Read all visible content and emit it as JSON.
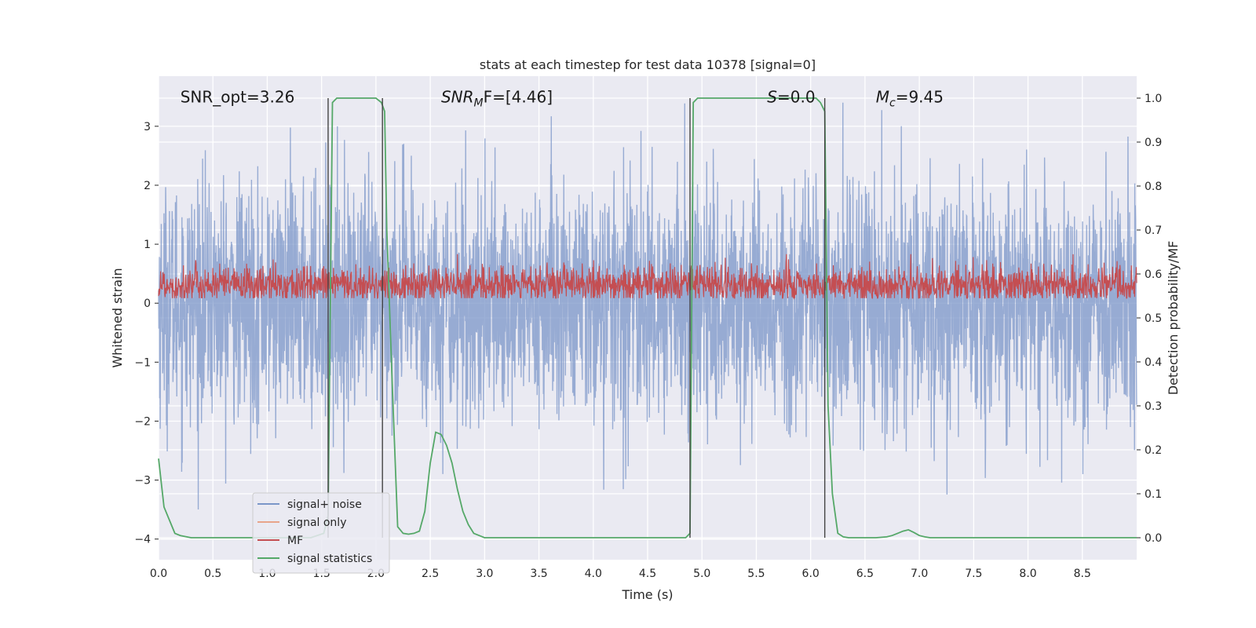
{
  "chart_data": {
    "type": "line",
    "title": "stats at each timestep for test data 10378 [signal=0]",
    "xlabel": "Time (s)",
    "ylabel": "Whitened strain",
    "y2label": "Detection probability/MF",
    "xlim": [
      0.0,
      9.0
    ],
    "ylim": [
      -4.35,
      3.85
    ],
    "y2lim": [
      -0.05,
      1.05
    ],
    "xticks": [
      0.0,
      0.5,
      1.0,
      1.5,
      2.0,
      2.5,
      3.0,
      3.5,
      4.0,
      4.5,
      5.0,
      5.5,
      6.0,
      6.5,
      7.0,
      7.5,
      8.0,
      8.5
    ],
    "xtick_labels": [
      "0.0",
      "0.5",
      "1.0",
      "1.5",
      "2.0",
      "2.5",
      "3.0",
      "3.5",
      "4.0",
      "4.5",
      "5.0",
      "5.5",
      "6.0",
      "6.5",
      "7.0",
      "7.5",
      "8.0",
      "8.5"
    ],
    "yticks": [
      -4,
      -3,
      -2,
      -1,
      0,
      1,
      2,
      3
    ],
    "ytick_labels": [
      "−4",
      "−3",
      "−2",
      "−1",
      "0",
      "1",
      "2",
      "3"
    ],
    "y2ticks": [
      0.0,
      0.1,
      0.2,
      0.3,
      0.4,
      0.5,
      0.6,
      0.7,
      0.8,
      0.9,
      1.0
    ],
    "y2tick_labels": [
      "0.0",
      "0.1",
      "0.2",
      "0.3",
      "0.4",
      "0.5",
      "0.6",
      "0.7",
      "0.8",
      "0.9",
      "1.0"
    ],
    "grid": true,
    "legend_position": "lower-left",
    "annotations": [
      {
        "text": "SNR_opt=3.26",
        "x": 0.2,
        "y": 3.5
      },
      {
        "text": "SNRMF=[4.46]",
        "main": "SNR",
        "sub": "M",
        "tail": "F=[4.46]",
        "x": 2.6,
        "y": 3.5
      },
      {
        "text": "S=0.0",
        "main": "S",
        "tail": "=0.0",
        "x": 5.6,
        "y": 3.5
      },
      {
        "text": "Mc=9.45",
        "main": "M",
        "sub": "c",
        "tail": "=9.45",
        "x": 6.6,
        "y": 3.5
      }
    ],
    "vertical_lines_x": [
      1.56,
      2.06,
      4.89,
      6.13
    ],
    "series": [
      {
        "name": "signal+ noise",
        "axis": "left",
        "color": "#7b96c8",
        "kind": "noise",
        "center": 0.0,
        "spread": 1.0,
        "peak_max": 3.4,
        "peak_min": -4.0
      },
      {
        "name": "signal only",
        "axis": "left",
        "color": "#e8a58a",
        "kind": "flat",
        "value": 0.0
      },
      {
        "name": "MF",
        "axis": "right",
        "color": "#c44e52",
        "kind": "noise",
        "center": 0.575,
        "spread": 0.022,
        "peak_max": 0.645,
        "peak_min": 0.545
      },
      {
        "name": "signal statistics",
        "axis": "right",
        "color": "#55a868",
        "kind": "line",
        "x": [
          0.0,
          0.05,
          0.1,
          0.15,
          0.2,
          0.3,
          0.5,
          1.0,
          1.4,
          1.52,
          1.56,
          1.6,
          1.64,
          1.7,
          1.8,
          2.0,
          2.05,
          2.08,
          2.1,
          2.15,
          2.2,
          2.25,
          2.3,
          2.35,
          2.4,
          2.45,
          2.5,
          2.55,
          2.6,
          2.65,
          2.7,
          2.75,
          2.8,
          2.85,
          2.9,
          2.95,
          3.0,
          3.1,
          3.5,
          4.0,
          4.5,
          4.85,
          4.89,
          4.92,
          4.96,
          5.0,
          5.5,
          6.0,
          6.05,
          6.09,
          6.13,
          6.16,
          6.2,
          6.25,
          6.3,
          6.35,
          6.4,
          6.6,
          6.7,
          6.75,
          6.8,
          6.85,
          6.9,
          6.95,
          7.0,
          7.05,
          7.1,
          7.5,
          8.0,
          8.5,
          9.0
        ],
        "y": [
          0.18,
          0.07,
          0.04,
          0.01,
          0.005,
          0.0,
          0.0,
          0.0,
          0.0,
          0.01,
          0.05,
          0.99,
          1.0,
          1.0,
          1.0,
          1.0,
          0.99,
          0.97,
          0.7,
          0.35,
          0.025,
          0.01,
          0.008,
          0.01,
          0.015,
          0.06,
          0.17,
          0.24,
          0.235,
          0.21,
          0.17,
          0.11,
          0.06,
          0.03,
          0.01,
          0.005,
          0.0,
          0.0,
          0.0,
          0.0,
          0.0,
          0.0,
          0.01,
          0.99,
          1.0,
          1.0,
          1.0,
          1.0,
          1.0,
          0.99,
          0.97,
          0.3,
          0.1,
          0.01,
          0.002,
          0.0,
          0.0,
          0.0,
          0.002,
          0.005,
          0.01,
          0.015,
          0.018,
          0.012,
          0.005,
          0.002,
          0.0,
          0.0,
          0.0,
          0.0,
          0.0
        ]
      }
    ]
  }
}
